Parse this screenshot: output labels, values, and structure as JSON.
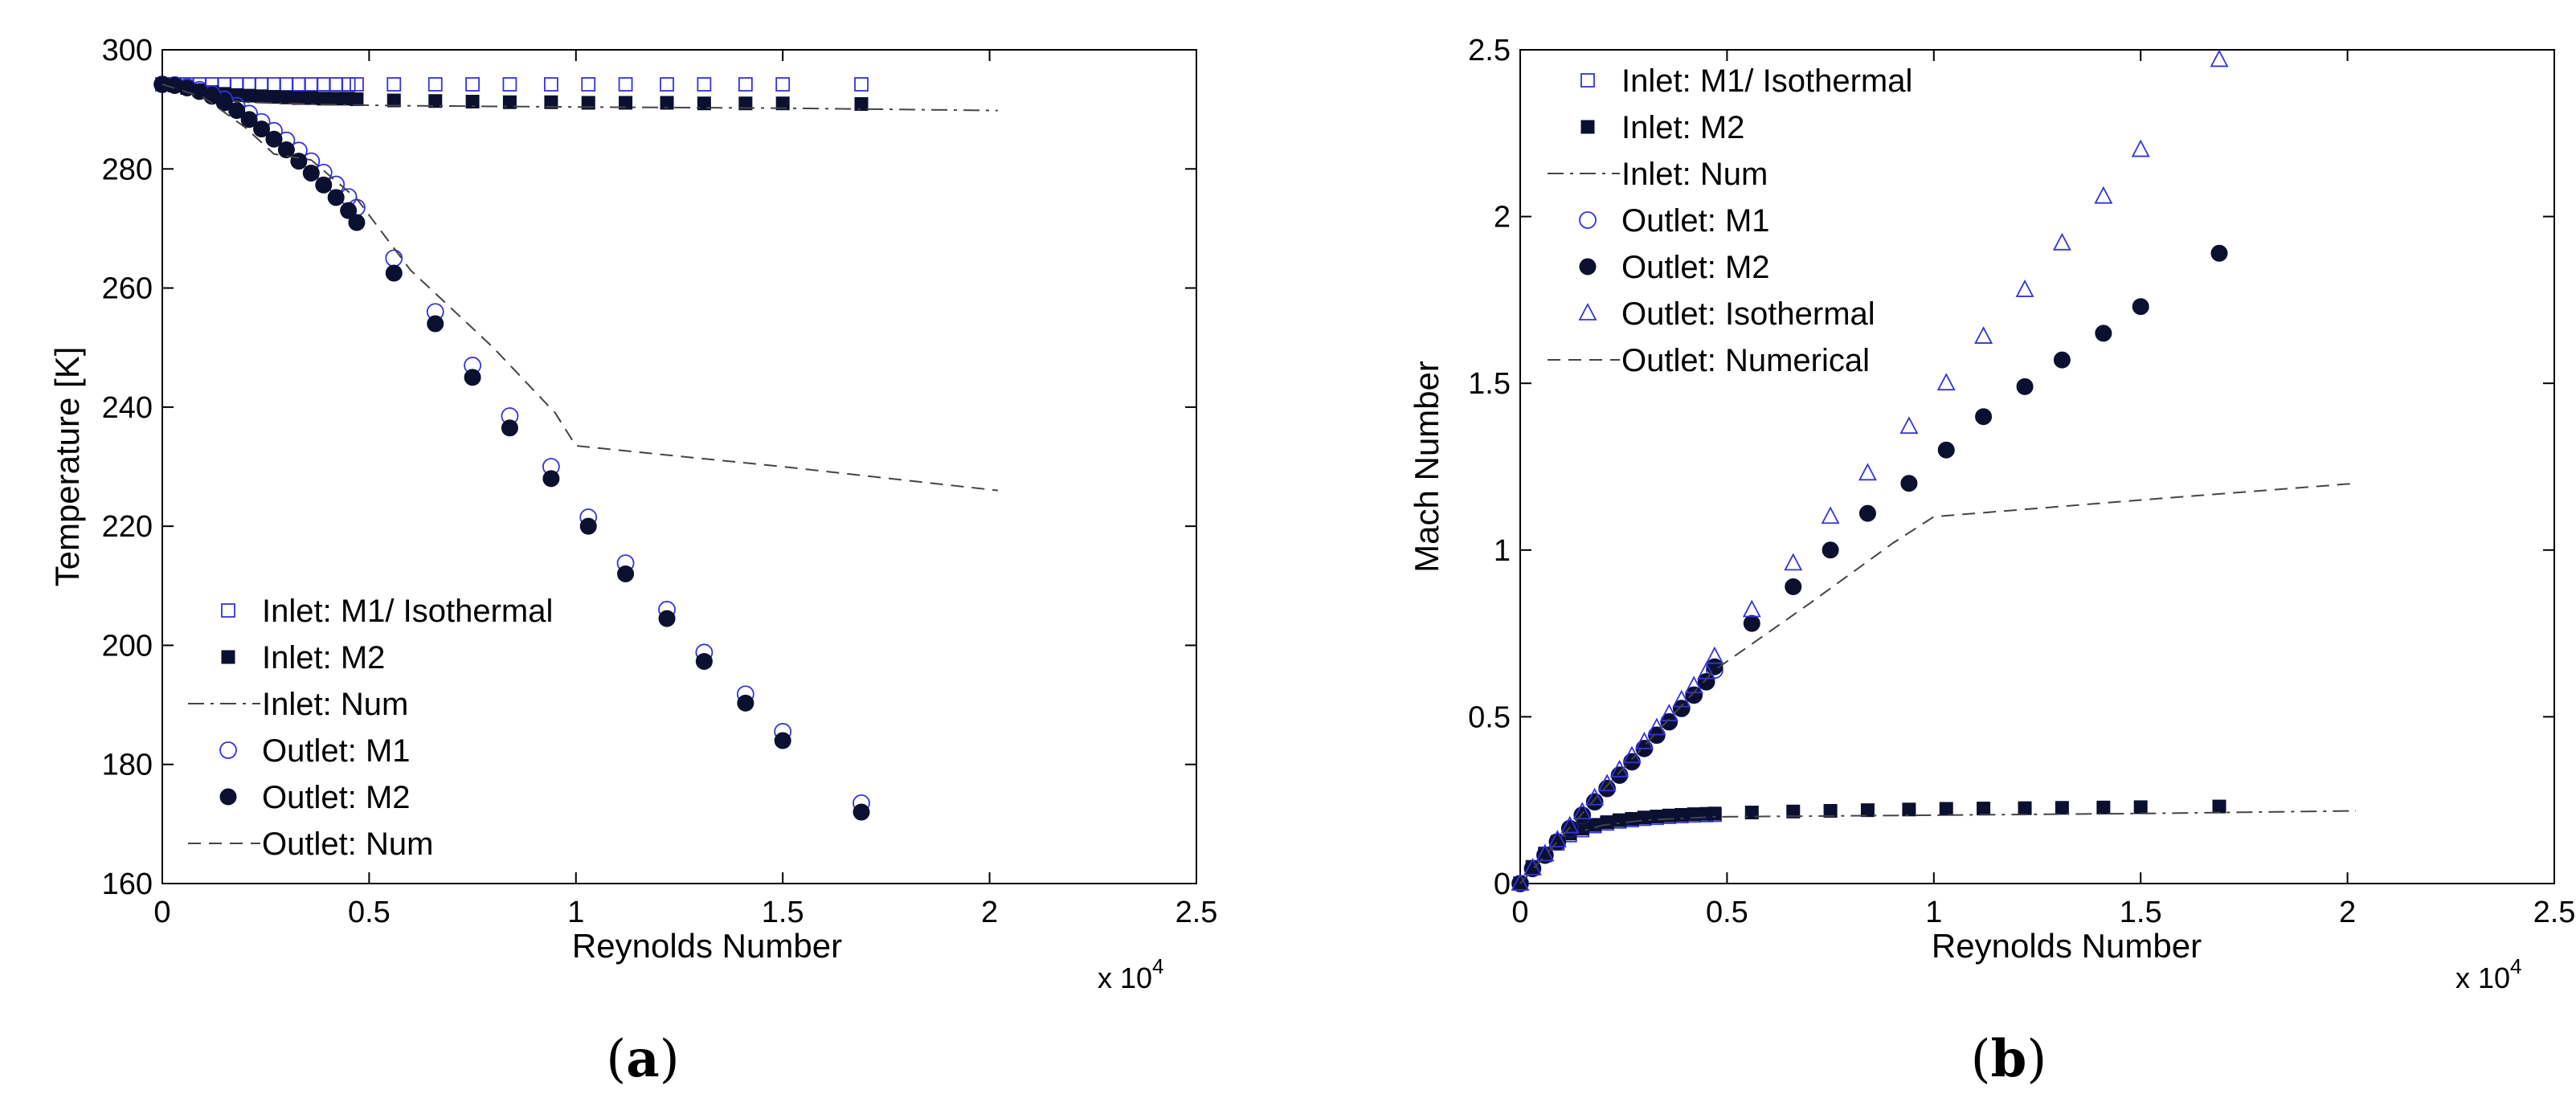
{
  "panels": [
    {
      "letter": "a"
    },
    {
      "letter": "b"
    }
  ],
  "colors": {
    "open_marker": "#3333dd",
    "filled_marker": "#0b1030",
    "line": "#444444"
  },
  "chart_data": [
    {
      "type": "scatter",
      "xlabel": "Reynolds Number",
      "ylabel": "Temperature [K]",
      "x_multiplier": "x 10",
      "x_multiplier_exp": "4",
      "xlim": [
        0,
        2.5
      ],
      "ylim": [
        160,
        300
      ],
      "xticks": [
        0,
        0.5,
        1,
        1.5,
        2,
        2.5
      ],
      "xtick_labels": [
        "0",
        "0.5",
        "1",
        "1.5",
        "2",
        "2.5"
      ],
      "yticks": [
        160,
        180,
        200,
        220,
        240,
        260,
        280,
        300
      ],
      "ytick_labels": [
        "160",
        "180",
        "200",
        "220",
        "240",
        "260",
        "280",
        "300"
      ],
      "legend_position": "lower-left",
      "series": [
        {
          "name": "Inlet: M1/ Isothermal",
          "marker": "square-open",
          "x": [
            0,
            0.03,
            0.06,
            0.09,
            0.12,
            0.15,
            0.18,
            0.21,
            0.24,
            0.27,
            0.3,
            0.33,
            0.36,
            0.39,
            0.42,
            0.45,
            0.47,
            0.56,
            0.66,
            0.75,
            0.84,
            0.94,
            1.03,
            1.12,
            1.22,
            1.31,
            1.41,
            1.5,
            1.69
          ],
          "y": [
            294.2,
            294.2,
            294.2,
            294.2,
            294.2,
            294.2,
            294.2,
            294.2,
            294.2,
            294.2,
            294.2,
            294.2,
            294.2,
            294.2,
            294.2,
            294.2,
            294.2,
            294.2,
            294.2,
            294.2,
            294.2,
            294.2,
            294.2,
            294.2,
            294.2,
            294.2,
            294.2,
            294.2,
            294.2
          ]
        },
        {
          "name": "Inlet: M2",
          "marker": "square-filled",
          "x": [
            0,
            0.03,
            0.06,
            0.09,
            0.12,
            0.15,
            0.18,
            0.21,
            0.24,
            0.27,
            0.3,
            0.33,
            0.36,
            0.39,
            0.42,
            0.45,
            0.47,
            0.56,
            0.66,
            0.75,
            0.84,
            0.94,
            1.03,
            1.12,
            1.22,
            1.31,
            1.41,
            1.5,
            1.69
          ],
          "y": [
            294.2,
            294.0,
            293.6,
            293.2,
            292.9,
            292.6,
            292.4,
            292.3,
            292.2,
            292.1,
            292.0,
            291.9,
            291.9,
            291.8,
            291.8,
            291.8,
            291.7,
            291.5,
            291.4,
            291.3,
            291.2,
            291.2,
            291.1,
            291.1,
            291.1,
            291.0,
            291.0,
            291.0,
            290.9
          ]
        },
        {
          "name": "Inlet: Num",
          "marker": "dashdot-line",
          "x": [
            0,
            0.1,
            0.2,
            0.4,
            0.6,
            1.0,
            1.5,
            2.02
          ],
          "y": [
            294.2,
            292.0,
            291.2,
            290.8,
            290.6,
            290.4,
            290.2,
            289.8
          ]
        },
        {
          "name": "Outlet: M1",
          "marker": "circle-open",
          "x": [
            0,
            0.03,
            0.06,
            0.09,
            0.12,
            0.15,
            0.18,
            0.21,
            0.24,
            0.27,
            0.3,
            0.33,
            0.36,
            0.39,
            0.42,
            0.45,
            0.47,
            0.56,
            0.66,
            0.75,
            0.84,
            0.94,
            1.03,
            1.12,
            1.22,
            1.31,
            1.41,
            1.5,
            1.69
          ],
          "y": [
            294.2,
            294.1,
            293.8,
            293.3,
            292.6,
            291.7,
            290.6,
            289.3,
            287.9,
            286.4,
            284.8,
            283.1,
            281.3,
            279.4,
            277.4,
            275.3,
            273.5,
            265.0,
            256.0,
            247.0,
            238.5,
            230.0,
            221.5,
            213.8,
            206.0,
            198.8,
            191.8,
            185.5,
            173.5
          ]
        },
        {
          "name": "Outlet: M2",
          "marker": "circle-filled",
          "x": [
            0,
            0.03,
            0.06,
            0.09,
            0.12,
            0.15,
            0.18,
            0.21,
            0.24,
            0.27,
            0.3,
            0.33,
            0.36,
            0.39,
            0.42,
            0.45,
            0.47,
            0.56,
            0.66,
            0.75,
            0.84,
            0.94,
            1.03,
            1.12,
            1.22,
            1.31,
            1.41,
            1.5,
            1.69
          ],
          "y": [
            294.2,
            294.0,
            293.6,
            293.0,
            292.2,
            291.1,
            289.8,
            288.3,
            286.7,
            285.0,
            283.2,
            281.3,
            279.3,
            277.3,
            275.2,
            273.0,
            271.0,
            262.5,
            254.0,
            245.0,
            236.5,
            228.0,
            220.0,
            212.0,
            204.5,
            197.3,
            190.3,
            184.0,
            172.0
          ]
        },
        {
          "name": "Outlet: Num",
          "marker": "dashed-line",
          "x": [
            0,
            0.1,
            0.2,
            0.27,
            0.36,
            0.47,
            0.6,
            0.8,
            0.95,
            1.0,
            1.5,
            2.02
          ],
          "y": [
            294.2,
            292.0,
            287.0,
            282.5,
            281.5,
            275.0,
            263.0,
            250.0,
            239.0,
            233.5,
            230.0,
            226.0
          ]
        }
      ]
    },
    {
      "type": "scatter",
      "xlabel": "Reynolds Number",
      "ylabel": "Mach Number",
      "x_multiplier": "x 10",
      "x_multiplier_exp": "4",
      "xlim": [
        0,
        2.5
      ],
      "ylim": [
        0,
        2.5
      ],
      "xticks": [
        0,
        0.5,
        1,
        1.5,
        2,
        2.5
      ],
      "xtick_labels": [
        "0",
        "0.5",
        "1",
        "1.5",
        "2",
        "2.5"
      ],
      "yticks": [
        0,
        0.5,
        1,
        1.5,
        2,
        2.5
      ],
      "ytick_labels": [
        "0",
        "0.5",
        "1",
        "1.5",
        "2",
        "2.5"
      ],
      "legend_position": "top-left",
      "series": [
        {
          "name": "Inlet: M1/ Isothermal",
          "marker": "square-open",
          "x": [
            0,
            0.03,
            0.06,
            0.09,
            0.12,
            0.15,
            0.18,
            0.21,
            0.24,
            0.27,
            0.3,
            0.33,
            0.36,
            0.39,
            0.42,
            0.45,
            0.47
          ],
          "y": [
            0,
            0.046,
            0.085,
            0.12,
            0.145,
            0.16,
            0.172,
            0.18,
            0.186,
            0.19,
            0.194,
            0.197,
            0.2,
            0.202,
            0.204,
            0.205,
            0.206
          ]
        },
        {
          "name": "Inlet: M2",
          "marker": "square-filled",
          "x": [
            0,
            0.03,
            0.06,
            0.09,
            0.12,
            0.15,
            0.18,
            0.21,
            0.24,
            0.27,
            0.3,
            0.33,
            0.36,
            0.39,
            0.42,
            0.45,
            0.47,
            0.56,
            0.66,
            0.75,
            0.84,
            0.94,
            1.03,
            1.12,
            1.22,
            1.31,
            1.41,
            1.5,
            1.69
          ],
          "y": [
            0,
            0.05,
            0.09,
            0.125,
            0.15,
            0.165,
            0.176,
            0.184,
            0.19,
            0.194,
            0.198,
            0.201,
            0.204,
            0.206,
            0.208,
            0.209,
            0.21,
            0.213,
            0.216,
            0.218,
            0.22,
            0.222,
            0.224,
            0.225,
            0.226,
            0.227,
            0.228,
            0.229,
            0.231
          ]
        },
        {
          "name": "Inlet: Num",
          "marker": "dashdot-line",
          "x": [
            0,
            0.1,
            0.2,
            0.3,
            0.47,
            1.0,
            1.5,
            2.02
          ],
          "y": [
            0,
            0.14,
            0.175,
            0.19,
            0.2,
            0.205,
            0.21,
            0.218
          ]
        },
        {
          "name": "Outlet: M1",
          "marker": "circle-open",
          "x": [
            0,
            0.03,
            0.06,
            0.09,
            0.12,
            0.15,
            0.18,
            0.21,
            0.24,
            0.27,
            0.3,
            0.33,
            0.36,
            0.39,
            0.42,
            0.45,
            0.47
          ],
          "y": [
            0,
            0.045,
            0.085,
            0.125,
            0.165,
            0.205,
            0.245,
            0.285,
            0.325,
            0.365,
            0.405,
            0.445,
            0.485,
            0.525,
            0.565,
            0.605,
            0.64
          ]
        },
        {
          "name": "Outlet: M2",
          "marker": "circle-filled",
          "x": [
            0,
            0.03,
            0.06,
            0.09,
            0.12,
            0.15,
            0.18,
            0.21,
            0.24,
            0.27,
            0.3,
            0.33,
            0.36,
            0.39,
            0.42,
            0.45,
            0.47,
            0.56,
            0.66,
            0.75,
            0.84,
            0.94,
            1.03,
            1.12,
            1.22,
            1.31,
            1.41,
            1.5,
            1.69
          ],
          "y": [
            0,
            0.045,
            0.085,
            0.125,
            0.165,
            0.205,
            0.245,
            0.285,
            0.325,
            0.365,
            0.405,
            0.445,
            0.485,
            0.525,
            0.565,
            0.605,
            0.65,
            0.78,
            0.89,
            1.0,
            1.11,
            1.2,
            1.3,
            1.4,
            1.49,
            1.57,
            1.65,
            1.73,
            1.89
          ]
        },
        {
          "name": "Outlet: Isothermal",
          "marker": "triangle-open",
          "x": [
            0,
            0.03,
            0.06,
            0.09,
            0.12,
            0.15,
            0.18,
            0.21,
            0.24,
            0.27,
            0.3,
            0.33,
            0.36,
            0.39,
            0.42,
            0.45,
            0.47,
            0.56,
            0.66,
            0.75,
            0.84,
            0.94,
            1.03,
            1.12,
            1.22,
            1.31,
            1.41,
            1.5,
            1.69
          ],
          "y": [
            0,
            0.046,
            0.088,
            0.13,
            0.172,
            0.214,
            0.256,
            0.298,
            0.34,
            0.382,
            0.424,
            0.466,
            0.508,
            0.55,
            0.592,
            0.634,
            0.68,
            0.82,
            0.96,
            1.1,
            1.23,
            1.37,
            1.5,
            1.64,
            1.78,
            1.92,
            2.06,
            2.2,
            2.47
          ]
        },
        {
          "name": "Outlet: Numerical",
          "marker": "dashed-line",
          "x": [
            0,
            0.2,
            0.47,
            0.7,
            0.9,
            1.0,
            1.5,
            2.02
          ],
          "y": [
            0,
            0.28,
            0.64,
            0.84,
            1.02,
            1.1,
            1.15,
            1.2
          ]
        }
      ]
    }
  ]
}
